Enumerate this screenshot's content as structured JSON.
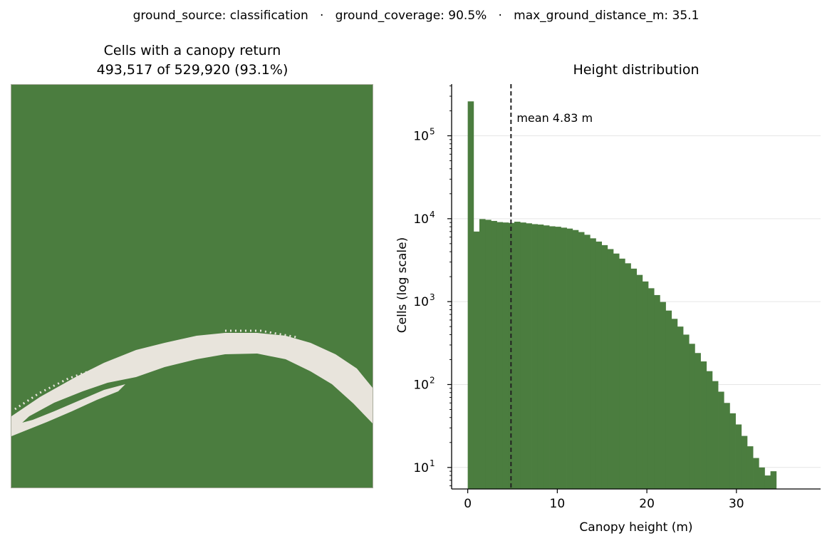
{
  "suptitle": "ground_source: classification   ·   ground_coverage: 90.5%   ·   max_ground_distance_m: 35.1",
  "colors": {
    "canopy": "#4b7d3f",
    "ground": "#e8e4dc",
    "mean_line": "#222222",
    "frame": "#a8ab9c"
  },
  "map": {
    "title_line1": "Cells with a canopy return",
    "title_line2": "493,517 of 529,920 (93.1%)"
  },
  "chart_data": {
    "type": "histogram",
    "title": "Height distribution",
    "xlabel": "Canopy height (m)",
    "ylabel": "Cells (log scale)",
    "yscale": "log",
    "xlim": [
      -1.8,
      39.4
    ],
    "ylim": [
      5.5,
      420000
    ],
    "xticks": [
      0,
      10,
      20,
      30
    ],
    "yticks": [
      10,
      100,
      1000,
      10000,
      100000
    ],
    "ytick_labels": [
      "10",
      "10",
      "10",
      "10",
      "10"
    ],
    "ytick_exponents": [
      "1",
      "2",
      "3",
      "4",
      "5"
    ],
    "bin_width": 0.65,
    "bin_start": 0,
    "counts": [
      260000,
      7000,
      9900,
      9700,
      9400,
      9100,
      9000,
      8900,
      9200,
      9000,
      8800,
      8600,
      8500,
      8300,
      8100,
      8000,
      7800,
      7600,
      7300,
      6900,
      6400,
      5800,
      5300,
      4800,
      4300,
      3800,
      3300,
      2900,
      2500,
      2100,
      1750,
      1450,
      1200,
      990,
      780,
      620,
      500,
      400,
      310,
      240,
      190,
      145,
      110,
      82,
      60,
      45,
      33,
      24,
      18,
      13,
      10,
      8,
      9
    ],
    "mean_value": 4.83,
    "mean_label": "mean 4.83 m"
  }
}
